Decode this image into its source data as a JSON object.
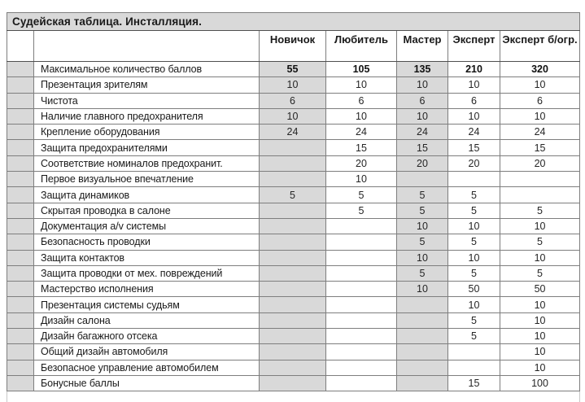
{
  "title": "Судейская таблица. Инсталляция.",
  "columns": [
    "Новичок",
    "Любитель",
    "Мастер",
    "Эксперт",
    "Эксперт б/огр."
  ],
  "shaded_value_columns": [
    0,
    2
  ],
  "rows": [
    {
      "label": "Максимальное количество баллов",
      "values": [
        "55",
        "105",
        "135",
        "210",
        "320"
      ],
      "bold": true
    },
    {
      "label": "Презентация зрителям",
      "values": [
        "10",
        "10",
        "10",
        "10",
        "10"
      ]
    },
    {
      "label": "Чистота",
      "values": [
        "6",
        "6",
        "6",
        "6",
        "6"
      ]
    },
    {
      "label": "Наличие главного предохранителя",
      "values": [
        "10",
        "10",
        "10",
        "10",
        "10"
      ]
    },
    {
      "label": "Крепление оборудования",
      "values": [
        "24",
        "24",
        "24",
        "24",
        "24"
      ]
    },
    {
      "label": "Защита предохранителями",
      "values": [
        "",
        "15",
        "15",
        "15",
        "15"
      ]
    },
    {
      "label": "Соответствие номиналов предохранит.",
      "values": [
        "",
        "20",
        "20",
        "20",
        "20"
      ]
    },
    {
      "label": "Первое визуальное впечатление",
      "values": [
        "",
        "10",
        "",
        "",
        ""
      ]
    },
    {
      "label": "Защита динамиков",
      "values": [
        "5",
        "5",
        "5",
        "5",
        ""
      ]
    },
    {
      "label": "Скрытая проводка в салоне",
      "values": [
        "",
        "5",
        "5",
        "5",
        "5"
      ]
    },
    {
      "label": "Документация a/v системы",
      "values": [
        "",
        "",
        "10",
        "10",
        "10"
      ]
    },
    {
      "label": "Безопасность проводки",
      "values": [
        "",
        "",
        "5",
        "5",
        "5"
      ]
    },
    {
      "label": "Защита контактов",
      "values": [
        "",
        "",
        "10",
        "10",
        "10"
      ]
    },
    {
      "label": "Защита проводки от мех. повреждений",
      "values": [
        "",
        "",
        "5",
        "5",
        "5"
      ]
    },
    {
      "label": "Мастерство исполнения",
      "values": [
        "",
        "",
        "10",
        "50",
        "50"
      ]
    },
    {
      "label": "Презентация системы судьям",
      "values": [
        "",
        "",
        "",
        "10",
        "10"
      ]
    },
    {
      "label": "Дизайн салона",
      "values": [
        "",
        "",
        "",
        "5",
        "10"
      ]
    },
    {
      "label": "Дизайн багажного отсека",
      "values": [
        "",
        "",
        "",
        "5",
        "10"
      ]
    },
    {
      "label": "Общий дизайн автомобиля",
      "values": [
        "",
        "",
        "",
        "",
        "10"
      ]
    },
    {
      "label": "Безопасное управление автомобилем",
      "values": [
        "",
        "",
        "",
        "",
        "10"
      ]
    },
    {
      "label": "Бонусные баллы",
      "values": [
        "",
        "",
        "",
        "15",
        "100"
      ]
    }
  ],
  "colors": {
    "shaded_cell": "#d9d9d9",
    "grid_border": "#7e7e7e",
    "outer_border": "#4f4f4f",
    "text": "#1a1a1a"
  }
}
